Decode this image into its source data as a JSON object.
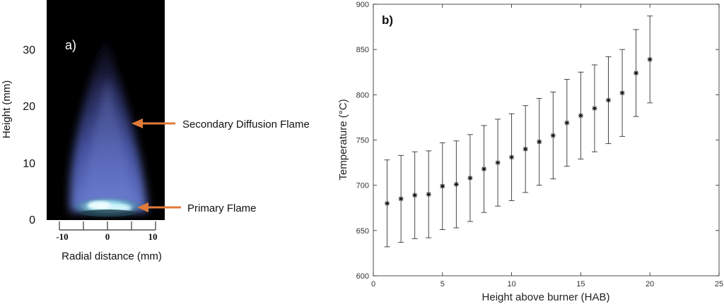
{
  "flame_panel": {
    "panel_label": "a)",
    "ylabel": "Height (mm)",
    "xlabel": "Radial distance (mm)",
    "y_ticks": [
      "0",
      "10",
      "20",
      "30"
    ],
    "x_ticks": [
      "-10",
      "0",
      "10"
    ],
    "annotations": [
      {
        "text": "Secondary Diffusion Flame"
      },
      {
        "text": "Primary Flame"
      }
    ],
    "colors": {
      "arrow": "#e07b39",
      "background": "#000000"
    }
  },
  "chart_data": {
    "type": "scatter",
    "panel_label": "b)",
    "xlabel": "Height above burner (HAB)",
    "ylabel": "Temperature (°C)",
    "xlim": [
      0,
      25
    ],
    "ylim": [
      600,
      900
    ],
    "x_ticks": [
      0,
      5,
      10,
      15,
      20,
      25
    ],
    "y_ticks": [
      600,
      650,
      700,
      750,
      800,
      850,
      900
    ],
    "grid": false,
    "marker": "asterisk",
    "x": [
      1,
      2,
      3,
      4,
      5,
      6,
      7,
      8,
      9,
      10,
      11,
      12,
      13,
      14,
      15,
      16,
      17,
      18,
      19,
      20
    ],
    "y": [
      680,
      685,
      689,
      690,
      699,
      701,
      708,
      718,
      725,
      731,
      740,
      748,
      755,
      769,
      777,
      785,
      794,
      802,
      824,
      839
    ],
    "error_low": [
      632,
      637,
      641,
      642,
      651,
      653,
      660,
      670,
      677,
      683,
      692,
      700,
      707,
      721,
      729,
      737,
      746,
      754,
      776,
      791
    ],
    "error_high": [
      728,
      733,
      737,
      738,
      747,
      749,
      756,
      766,
      773,
      779,
      788,
      796,
      803,
      817,
      825,
      833,
      842,
      850,
      872,
      887
    ]
  }
}
